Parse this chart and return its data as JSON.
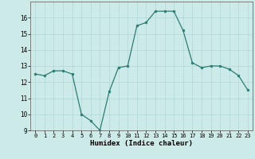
{
  "x": [
    0,
    1,
    2,
    3,
    4,
    5,
    6,
    7,
    8,
    9,
    10,
    11,
    12,
    13,
    14,
    15,
    16,
    17,
    18,
    19,
    20,
    21,
    22,
    23
  ],
  "y": [
    12.5,
    12.4,
    12.7,
    12.7,
    12.5,
    10.0,
    9.6,
    9.0,
    11.4,
    12.9,
    13.0,
    15.5,
    15.7,
    16.4,
    16.4,
    16.4,
    15.2,
    13.2,
    12.9,
    13.0,
    13.0,
    12.8,
    12.4,
    11.5
  ],
  "xlabel": "Humidex (Indice chaleur)",
  "ylim": [
    9,
    17
  ],
  "xlim": [
    -0.5,
    23.5
  ],
  "yticks": [
    9,
    10,
    11,
    12,
    13,
    14,
    15,
    16
  ],
  "xticks": [
    0,
    1,
    2,
    3,
    4,
    5,
    6,
    7,
    8,
    9,
    10,
    11,
    12,
    13,
    14,
    15,
    16,
    17,
    18,
    19,
    20,
    21,
    22,
    23
  ],
  "line_color": "#2d7d74",
  "marker_color": "#2d7d74",
  "bg_color": "#cceae8",
  "grid_color": "#b0d8d4",
  "font_color": "#000000"
}
